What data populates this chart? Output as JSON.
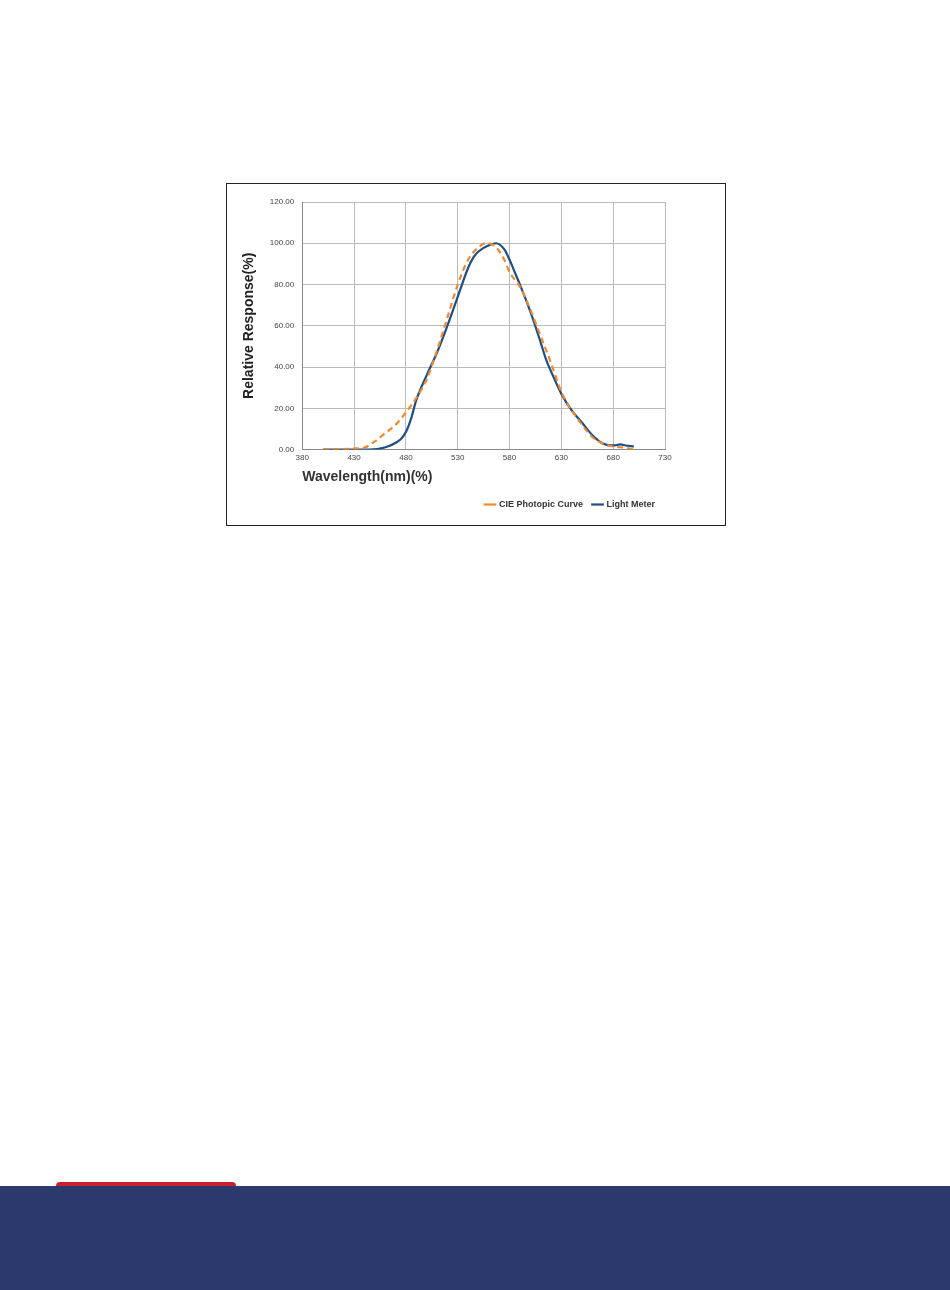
{
  "chart_data": {
    "type": "line",
    "xlabel": "Wavelength(nm)(%)",
    "ylabel": "Relative Response(%)",
    "xlim": [
      380,
      730
    ],
    "xticks": [
      380,
      430,
      480,
      530,
      580,
      630,
      680,
      730
    ],
    "ylim": [
      0,
      120
    ],
    "yticks": [
      {
        "value": 0,
        "label": "0.00"
      },
      {
        "value": 20,
        "label": "20.00"
      },
      {
        "value": 40,
        "label": "40.00"
      },
      {
        "value": 60,
        "label": "60.00"
      },
      {
        "value": 80,
        "label": "80.00"
      },
      {
        "value": 100,
        "label": "100.00"
      },
      {
        "value": 120,
        "label": "120.00"
      }
    ],
    "grid": true,
    "legend": "bottom right",
    "marker": "none",
    "series": [
      {
        "name": "CIE Photopic Curve",
        "color": "#f08a2c",
        "line_style": "dashed",
        "x": [
          400,
          430,
          440,
          450,
          460,
          470,
          480,
          490,
          500,
          510,
          520,
          530,
          540,
          550,
          557,
          565,
          575,
          580,
          590,
          600,
          610,
          620,
          630,
          640,
          650,
          660,
          670,
          680,
          690,
          700
        ],
        "values": [
          0,
          0.5,
          1,
          4,
          8,
          12,
          18,
          25,
          34,
          48,
          64,
          80,
          92,
          98,
          100,
          99,
          92,
          86,
          79,
          68,
          55,
          42,
          28,
          19,
          12,
          6,
          3,
          1.5,
          1,
          0
        ]
      },
      {
        "name": "Light Meter",
        "color": "#1f4e86",
        "line_style": "solid",
        "x": [
          400,
          440,
          455,
          465,
          475,
          480,
          485,
          490,
          500,
          510,
          520,
          530,
          540,
          545,
          550,
          560,
          567,
          575,
          580,
          585,
          590,
          600,
          610,
          615,
          620,
          630,
          640,
          650,
          660,
          670,
          680,
          687,
          692,
          700
        ],
        "values": [
          0,
          0,
          0.5,
          2,
          5,
          8.5,
          15,
          24,
          36,
          47,
          60,
          74,
          88,
          93,
          96,
          99,
          100,
          97,
          92,
          86,
          80,
          67,
          52,
          44,
          38,
          27,
          19,
          13,
          7,
          3,
          2,
          2.5,
          2,
          1.5
        ]
      }
    ]
  }
}
